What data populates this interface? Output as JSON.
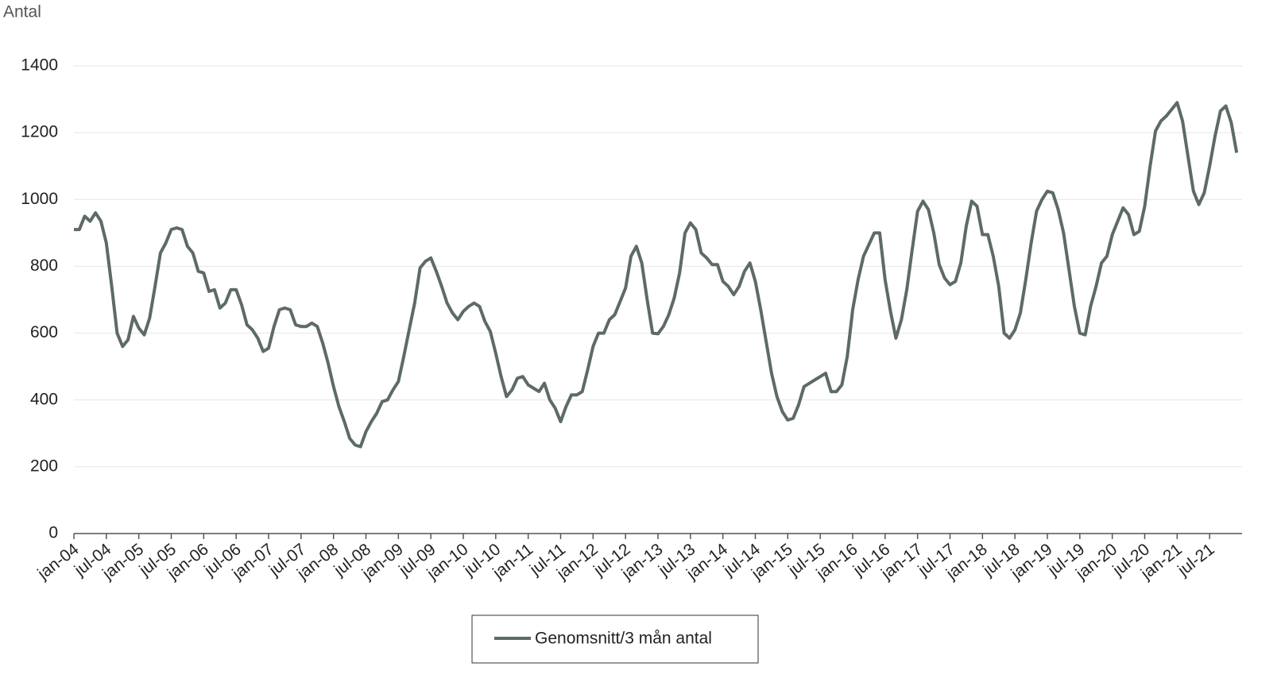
{
  "chart_data": {
    "type": "line",
    "y_label": "Antal",
    "categories": [
      "jan-04",
      null,
      null,
      null,
      null,
      null,
      "jul-04",
      null,
      null,
      null,
      null,
      null,
      "jan-05",
      null,
      null,
      null,
      null,
      null,
      "jul-05",
      null,
      null,
      null,
      null,
      null,
      "jan-06",
      null,
      null,
      null,
      null,
      null,
      "jul-06",
      null,
      null,
      null,
      null,
      null,
      "jan-07",
      null,
      null,
      null,
      null,
      null,
      "jul-07",
      null,
      null,
      null,
      null,
      null,
      "jan-08",
      null,
      null,
      null,
      null,
      null,
      "jul-08",
      null,
      null,
      null,
      null,
      null,
      "jan-09",
      null,
      null,
      null,
      null,
      null,
      "jul-09",
      null,
      null,
      null,
      null,
      null,
      "jan-10",
      null,
      null,
      null,
      null,
      null,
      "jul-10",
      null,
      null,
      null,
      null,
      null,
      "jan-11",
      null,
      null,
      null,
      null,
      null,
      "jul-11",
      null,
      null,
      null,
      null,
      null,
      "jan-12",
      null,
      null,
      null,
      null,
      null,
      "jul-12",
      null,
      null,
      null,
      null,
      null,
      "jan-13",
      null,
      null,
      null,
      null,
      null,
      "jul-13",
      null,
      null,
      null,
      null,
      null,
      "jan-14",
      null,
      null,
      null,
      null,
      null,
      "jul-14",
      null,
      null,
      null,
      null,
      null,
      "jan-15",
      null,
      null,
      null,
      null,
      null,
      "jul-15",
      null,
      null,
      null,
      null,
      null,
      "jan-16",
      null,
      null,
      null,
      null,
      null,
      "jul-16",
      null,
      null,
      null,
      null,
      null,
      "jan-17",
      null,
      null,
      null,
      null,
      null,
      "jul-17",
      null,
      null,
      null,
      null,
      null,
      "jan-18",
      null,
      null,
      null,
      null,
      null,
      "jul-18",
      null,
      null,
      null,
      null,
      null,
      "jan-19",
      null,
      null,
      null,
      null,
      null,
      "jul-19",
      null,
      null,
      null,
      null,
      null,
      "jan-20",
      null,
      null,
      null,
      null,
      null,
      "jul-20",
      null,
      null,
      null,
      null,
      null,
      "jan-21",
      null,
      null,
      null,
      null,
      null,
      "jul-21",
      null,
      null,
      null,
      null,
      null
    ],
    "series": [
      {
        "name": "Genomsnitt/3 mån antal",
        "color": "#5d6b64",
        "values": [
          910,
          910,
          950,
          935,
          960,
          935,
          870,
          740,
          600,
          560,
          580,
          650,
          615,
          595,
          645,
          740,
          840,
          870,
          910,
          915,
          910,
          860,
          840,
          785,
          780,
          725,
          730,
          675,
          690,
          730,
          730,
          685,
          625,
          610,
          585,
          545,
          555,
          620,
          670,
          675,
          670,
          625,
          620,
          620,
          630,
          620,
          570,
          510,
          440,
          380,
          335,
          285,
          265,
          260,
          305,
          335,
          360,
          395,
          400,
          430,
          455,
          530,
          610,
          690,
          795,
          815,
          825,
          785,
          740,
          690,
          660,
          640,
          665,
          680,
          690,
          680,
          635,
          605,
          540,
          470,
          410,
          430,
          465,
          470,
          445,
          435,
          425,
          450,
          400,
          375,
          335,
          380,
          415,
          415,
          425,
          490,
          560,
          600,
          600,
          640,
          655,
          695,
          735,
          830,
          860,
          810,
          700,
          600,
          598,
          620,
          655,
          705,
          780,
          900,
          930,
          910,
          840,
          825,
          805,
          805,
          755,
          740,
          715,
          740,
          785,
          810,
          755,
          670,
          575,
          480,
          410,
          365,
          340,
          345,
          385,
          440,
          450,
          460,
          470,
          480,
          425,
          425,
          445,
          530,
          670,
          760,
          830,
          865,
          900,
          900,
          760,
          665,
          585,
          640,
          730,
          850,
          965,
          995,
          970,
          900,
          805,
          765,
          745,
          755,
          810,
          920,
          995,
          980,
          895,
          895,
          830,
          740,
          600,
          585,
          610,
          660,
          760,
          870,
          965,
          1000,
          1025,
          1020,
          970,
          900,
          790,
          680,
          600,
          595,
          680,
          740,
          810,
          830,
          895,
          935,
          975,
          955,
          895,
          905,
          980,
          1100,
          1205,
          1235,
          1250,
          1270,
          1290,
          1235,
          1130,
          1025,
          985,
          1020,
          1100,
          1190,
          1265,
          1280,
          1230,
          1140
        ]
      }
    ],
    "ylim": [
      0,
      1400
    ],
    "yticks": [
      0,
      200,
      400,
      600,
      800,
      1000,
      1200,
      1400
    ],
    "grid": true,
    "legend": "bottom"
  }
}
